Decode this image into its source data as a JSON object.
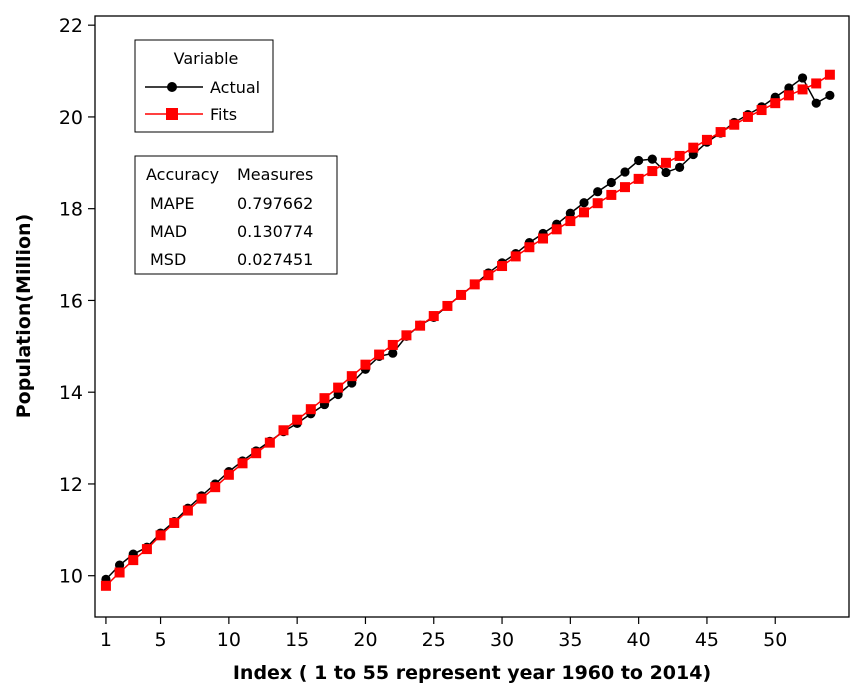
{
  "chart_data": {
    "type": "line",
    "xlabel": "Index ( 1 to 55 represent year 1960 to 2014)",
    "ylabel": "Population(Million)",
    "xlim": [
      0.2,
      55.4
    ],
    "ylim": [
      9.1,
      22.2
    ],
    "xticks": [
      1,
      5,
      10,
      15,
      20,
      25,
      30,
      35,
      40,
      45,
      50
    ],
    "yticks": [
      10,
      12,
      14,
      16,
      18,
      20,
      22
    ],
    "grid": false,
    "legend": {
      "title": "Variable",
      "position": "top-left",
      "entries": [
        {
          "label": "Actual",
          "color": "#000000",
          "marker": "circle"
        },
        {
          "label": "Fits",
          "color": "#ff0000",
          "marker": "square"
        }
      ]
    },
    "accuracy": {
      "header": [
        "Accuracy",
        "Measures"
      ],
      "rows": [
        {
          "name": "MAPE",
          "value": "0.797662"
        },
        {
          "name": "MAD",
          "value": "0.130774"
        },
        {
          "name": "MSD",
          "value": "0.027451"
        }
      ]
    },
    "series": [
      {
        "name": "Actual",
        "color": "#000000",
        "marker": "circle",
        "x": [
          1,
          2,
          3,
          4,
          5,
          6,
          7,
          8,
          9,
          10,
          11,
          12,
          13,
          14,
          15,
          16,
          17,
          18,
          19,
          20,
          21,
          22,
          23,
          24,
          25,
          26,
          27,
          28,
          29,
          30,
          31,
          32,
          33,
          34,
          35,
          36,
          37,
          38,
          39,
          40,
          41,
          42,
          43,
          44,
          45,
          46,
          47,
          48,
          49,
          50,
          51,
          52,
          53,
          54
        ],
        "y": [
          9.92,
          10.23,
          10.47,
          10.62,
          10.93,
          11.18,
          11.47,
          11.74,
          12.0,
          12.27,
          12.5,
          12.72,
          12.93,
          13.14,
          13.32,
          13.53,
          13.73,
          13.95,
          14.2,
          14.5,
          14.78,
          14.85,
          15.22,
          15.46,
          15.63,
          15.88,
          16.12,
          16.35,
          16.6,
          16.82,
          17.02,
          17.26,
          17.46,
          17.66,
          17.9,
          18.13,
          18.37,
          18.57,
          18.8,
          19.05,
          19.08,
          18.79,
          18.9,
          19.18,
          19.45,
          19.65,
          19.88,
          20.05,
          20.22,
          20.43,
          20.63,
          20.85,
          20.3,
          20.47
        ]
      },
      {
        "name": "Fits",
        "color": "#ff0000",
        "marker": "square",
        "x": [
          1,
          2,
          3,
          4,
          5,
          6,
          7,
          8,
          9,
          10,
          11,
          12,
          13,
          14,
          15,
          16,
          17,
          18,
          19,
          20,
          21,
          22,
          23,
          24,
          25,
          26,
          27,
          28,
          29,
          30,
          31,
          32,
          33,
          34,
          35,
          36,
          37,
          38,
          39,
          40,
          41,
          42,
          43,
          44,
          45,
          46,
          47,
          48,
          49,
          50,
          51,
          52,
          53,
          54
        ],
        "y": [
          9.78,
          10.07,
          10.34,
          10.58,
          10.88,
          11.15,
          11.42,
          11.68,
          11.93,
          12.2,
          12.45,
          12.67,
          12.9,
          13.17,
          13.4,
          13.63,
          13.87,
          14.1,
          14.35,
          14.6,
          14.82,
          15.03,
          15.24,
          15.45,
          15.66,
          15.88,
          16.12,
          16.35,
          16.55,
          16.75,
          16.96,
          17.16,
          17.35,
          17.55,
          17.73,
          17.92,
          18.12,
          18.3,
          18.47,
          18.65,
          18.82,
          19.0,
          19.15,
          19.33,
          19.5,
          19.67,
          19.83,
          20.0,
          20.15,
          20.3,
          20.47,
          20.6,
          20.73,
          20.92
        ]
      }
    ]
  }
}
